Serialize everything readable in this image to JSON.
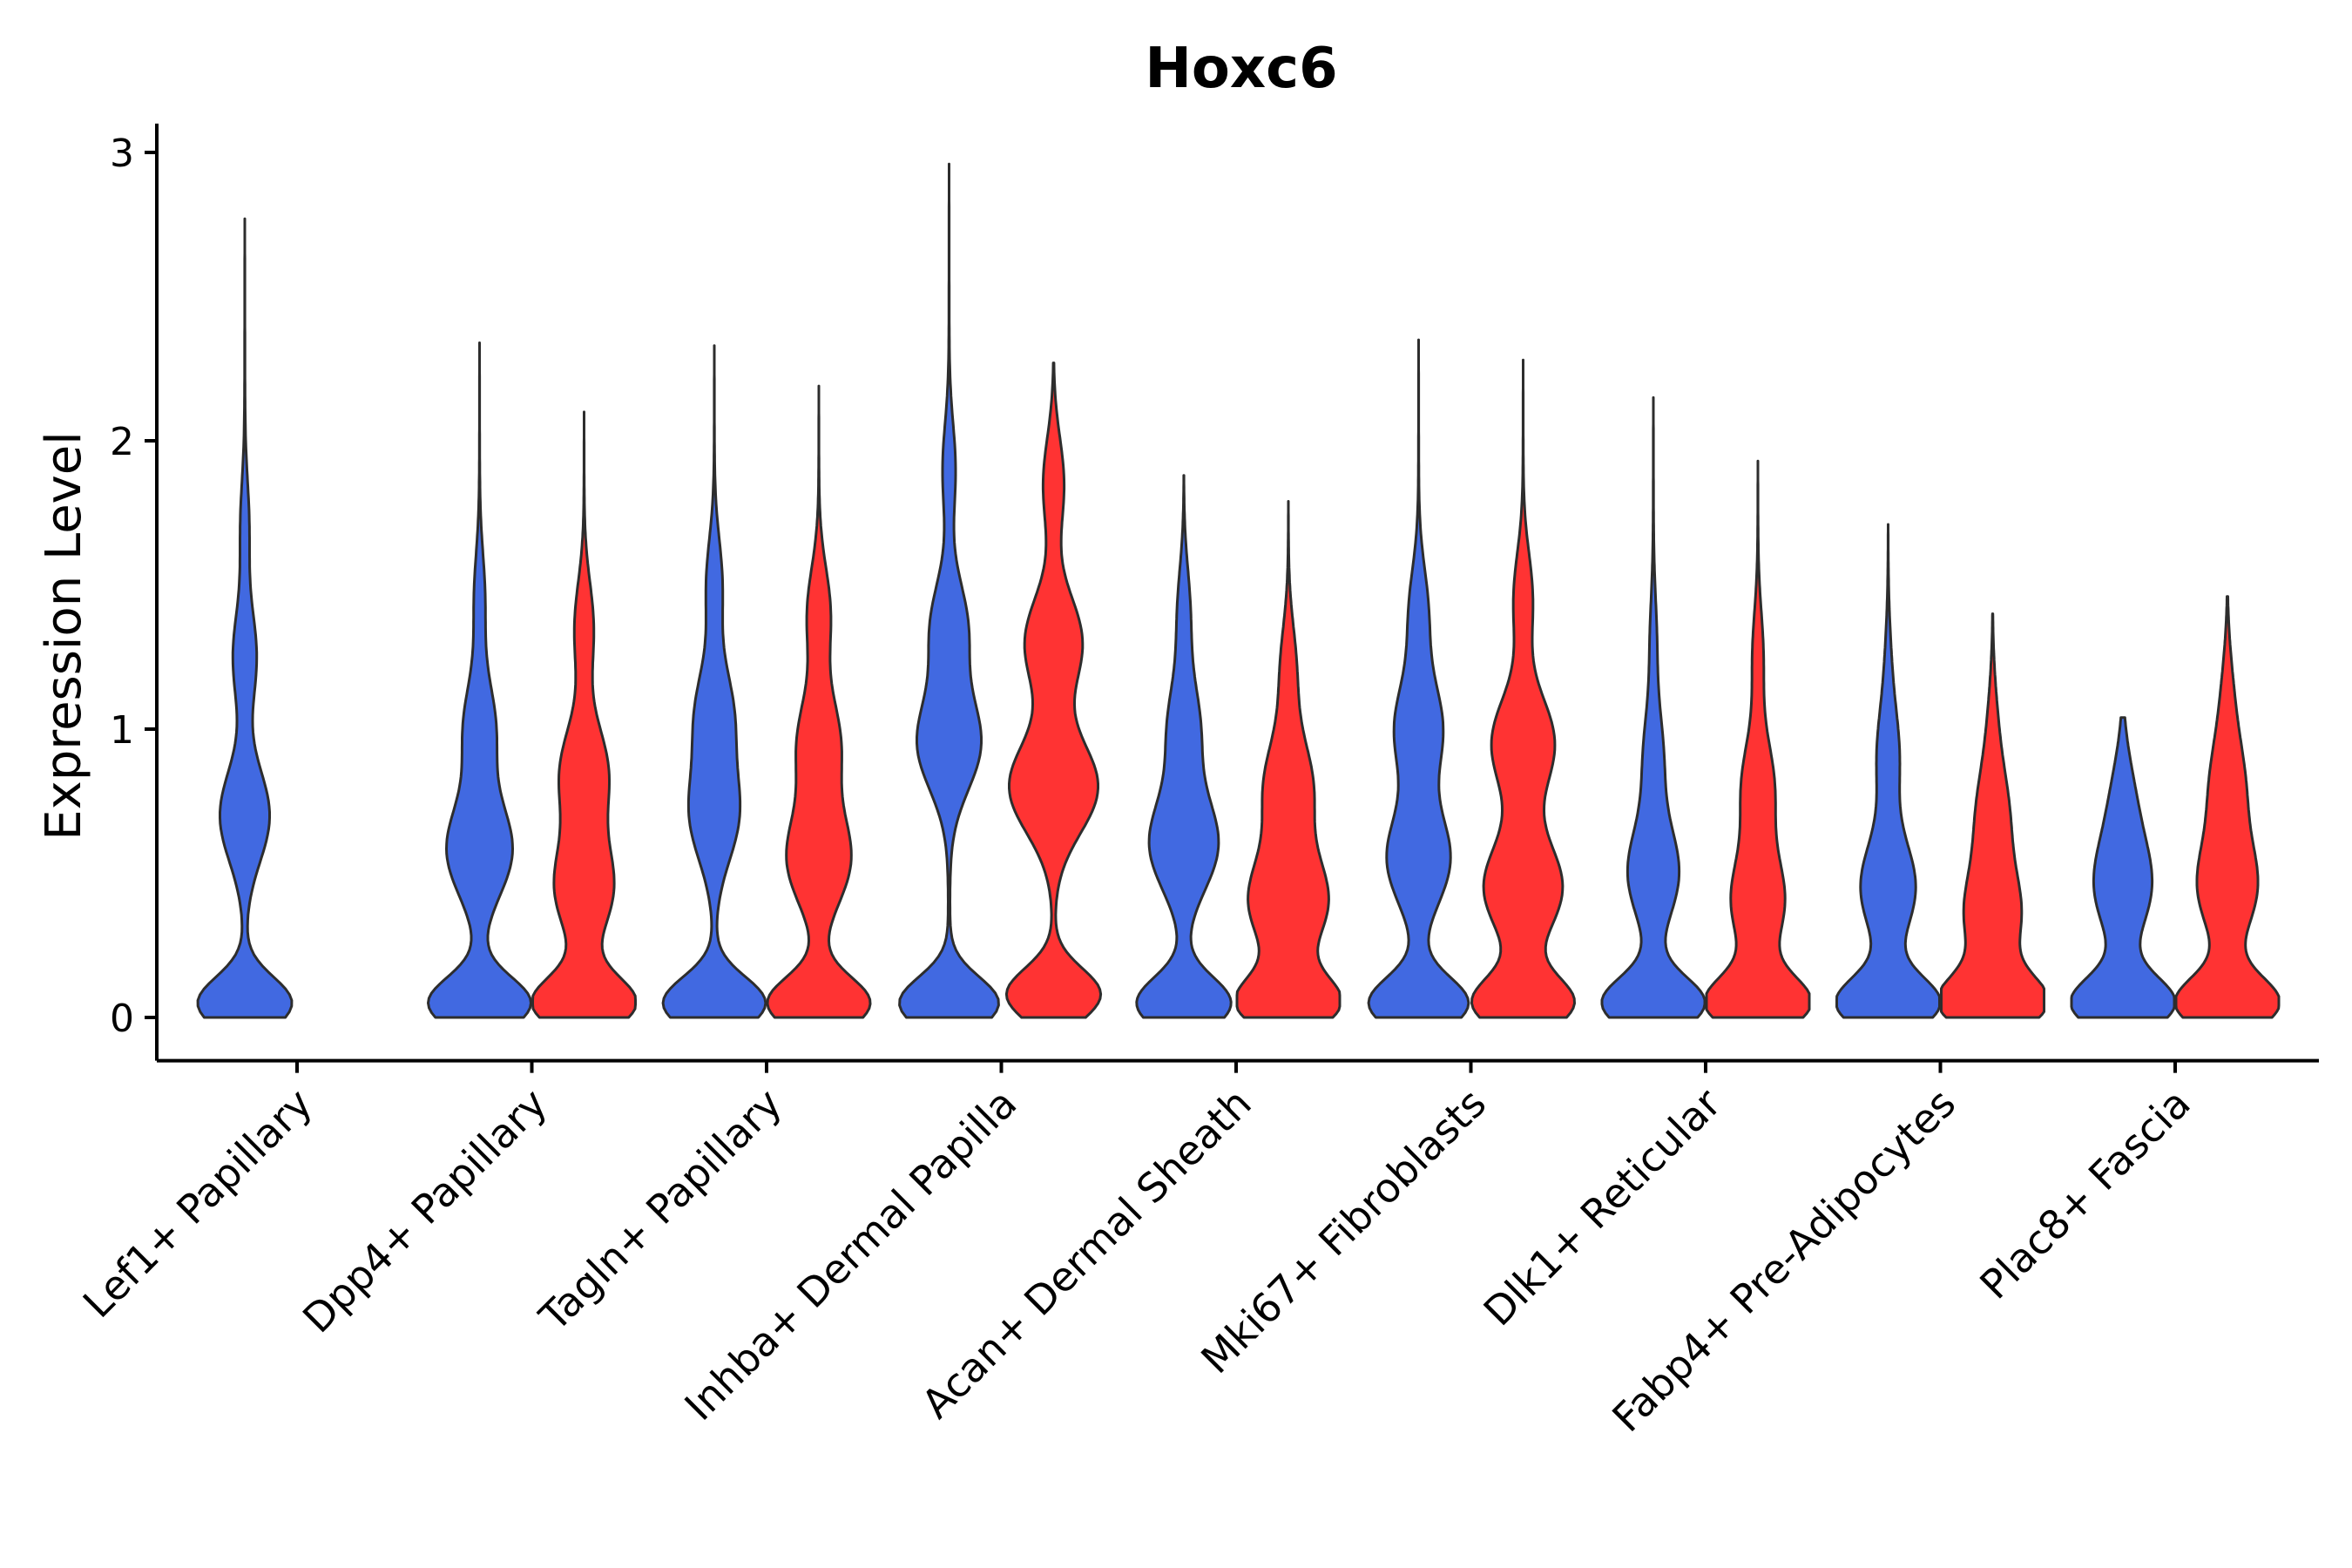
{
  "chart_data": {
    "type": "violin",
    "title": "Hoxc6",
    "xlabel": "",
    "ylabel": "Expression Level",
    "ylim": [
      -0.15,
      3.1
    ],
    "yticks": [
      0,
      1,
      2,
      3
    ],
    "grid": false,
    "legend": "none",
    "groups": [
      {
        "name": "blue",
        "color": "#4169E1"
      },
      {
        "name": "red",
        "color": "#FF3333"
      }
    ],
    "categories": [
      "Lef1+ Papillary",
      "Dpp4+ Papillary",
      "Tagln+ Papillary",
      "Inhba+ Dermal Papilla",
      "Acan+ Dermal Sheath",
      "Mki67+ Fibroblasts",
      "Dlk1+ Reticular",
      "Fabp4+ Pre-Adipocytes",
      "Plac8+ Fascia"
    ],
    "violins": [
      {
        "category": 0,
        "group": "blue",
        "max": 2.77,
        "modes": [
          [
            0.05,
            0.9
          ],
          [
            0.7,
            0.47
          ],
          [
            1.25,
            0.22
          ],
          [
            1.7,
            0.08
          ]
        ]
      },
      {
        "category": 1,
        "group": "blue",
        "max": 2.34,
        "modes": [
          [
            0.05,
            0.98
          ],
          [
            0.58,
            0.62
          ],
          [
            1.0,
            0.3
          ],
          [
            1.45,
            0.1
          ]
        ]
      },
      {
        "category": 1,
        "group": "red",
        "max": 2.1,
        "modes": [
          [
            0.05,
            0.98
          ],
          [
            0.45,
            0.55
          ],
          [
            0.85,
            0.45
          ],
          [
            1.35,
            0.18
          ]
        ]
      },
      {
        "category": 2,
        "group": "blue",
        "max": 2.33,
        "modes": [
          [
            0.05,
            0.98
          ],
          [
            0.7,
            0.45
          ],
          [
            1.05,
            0.35
          ],
          [
            1.5,
            0.15
          ]
        ]
      },
      {
        "category": 2,
        "group": "red",
        "max": 2.19,
        "modes": [
          [
            0.05,
            0.98
          ],
          [
            0.55,
            0.6
          ],
          [
            0.95,
            0.4
          ],
          [
            1.4,
            0.22
          ]
        ]
      },
      {
        "category": 3,
        "group": "blue",
        "max": 2.96,
        "modes": [
          [
            0.05,
            0.95
          ],
          [
            0.95,
            0.6
          ],
          [
            1.35,
            0.35
          ],
          [
            1.9,
            0.12
          ]
        ]
      },
      {
        "category": 3,
        "group": "red",
        "max": 2.27,
        "modes": [
          [
            0.08,
            0.9
          ],
          [
            0.8,
            0.85
          ],
          [
            1.3,
            0.55
          ],
          [
            1.85,
            0.2
          ]
        ]
      },
      {
        "category": 4,
        "group": "blue",
        "max": 1.88,
        "modes": [
          [
            0.05,
            0.9
          ],
          [
            0.6,
            0.65
          ],
          [
            1.0,
            0.3
          ],
          [
            1.4,
            0.12
          ]
        ]
      },
      {
        "category": 4,
        "group": "red",
        "max": 1.79,
        "modes": [
          [
            0.05,
            0.95
          ],
          [
            0.4,
            0.75
          ],
          [
            0.8,
            0.45
          ],
          [
            1.2,
            0.15
          ]
        ]
      },
      {
        "category": 5,
        "group": "blue",
        "max": 2.35,
        "modes": [
          [
            0.05,
            0.95
          ],
          [
            0.55,
            0.6
          ],
          [
            1.0,
            0.45
          ],
          [
            1.4,
            0.18
          ]
        ]
      },
      {
        "category": 5,
        "group": "red",
        "max": 2.28,
        "modes": [
          [
            0.05,
            0.95
          ],
          [
            0.45,
            0.75
          ],
          [
            0.95,
            0.6
          ],
          [
            1.45,
            0.18
          ]
        ]
      },
      {
        "category": 6,
        "group": "blue",
        "max": 2.15,
        "modes": [
          [
            0.05,
            0.98
          ],
          [
            0.5,
            0.48
          ],
          [
            0.9,
            0.18
          ],
          [
            1.3,
            0.06
          ]
        ]
      },
      {
        "category": 6,
        "group": "red",
        "max": 1.93,
        "modes": [
          [
            0.05,
            0.98
          ],
          [
            0.4,
            0.5
          ],
          [
            0.8,
            0.3
          ],
          [
            1.25,
            0.1
          ]
        ]
      },
      {
        "category": 7,
        "group": "blue",
        "max": 1.71,
        "modes": [
          [
            0.05,
            0.98
          ],
          [
            0.45,
            0.52
          ],
          [
            0.9,
            0.2
          ],
          [
            1.2,
            0.05
          ]
        ]
      },
      {
        "category": 7,
        "group": "red",
        "max": 1.4,
        "modes": [
          [
            0.05,
            0.98
          ],
          [
            0.35,
            0.52
          ],
          [
            0.7,
            0.28
          ],
          [
            1.0,
            0.08
          ]
        ]
      },
      {
        "category": 8,
        "group": "blue",
        "max": 1.04,
        "modes": [
          [
            0.05,
            0.98
          ],
          [
            0.45,
            0.52
          ],
          [
            0.75,
            0.2
          ]
        ]
      },
      {
        "category": 8,
        "group": "red",
        "max": 1.46,
        "modes": [
          [
            0.05,
            0.98
          ],
          [
            0.45,
            0.55
          ],
          [
            0.8,
            0.3
          ],
          [
            1.1,
            0.1
          ]
        ]
      }
    ]
  }
}
